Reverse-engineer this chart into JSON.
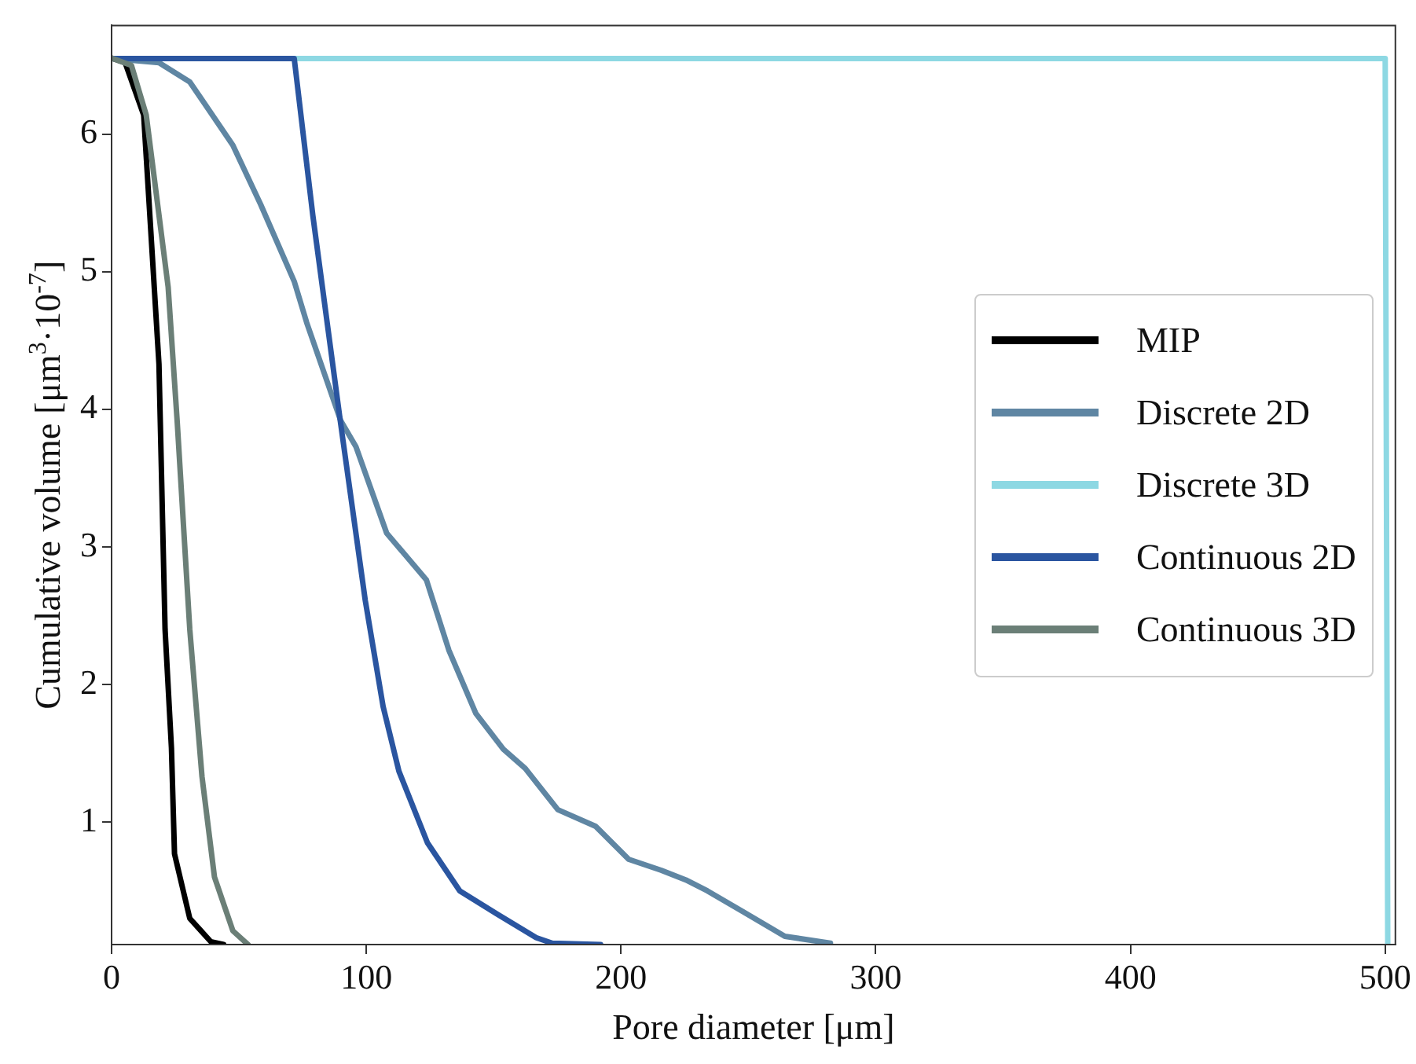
{
  "chart_data": {
    "type": "line",
    "xlabel": "Pore diameter [μm]",
    "ylabel": "Cumulative volume [μm$^{3}$·10$^{-7}$]",
    "xlim": [
      0,
      504
    ],
    "xticks": [
      0,
      100,
      200,
      300,
      400,
      500
    ],
    "ylim": [
      0.11,
      6.79
    ],
    "yticks": [
      1,
      2,
      3,
      4,
      5,
      6
    ],
    "grid": false,
    "legend": "right",
    "marker": "none",
    "line_style": "solid",
    "series": [
      {
        "name": "MIP",
        "color": "#000000",
        "x": [
          0.5,
          5.3,
          12.6,
          18.6,
          21,
          23.5,
          24.7,
          30.7,
          39,
          44
        ],
        "values": [
          6.55,
          6.52,
          6.14,
          4.33,
          2.4,
          1.54,
          0.77,
          0.3,
          0.13,
          0.11
        ]
      },
      {
        "name": "Discrete 2D",
        "color": "#5f86a3",
        "x": [
          0,
          18.6,
          30.7,
          47.6,
          58.5,
          71.7,
          76.6,
          89.9,
          95.9,
          108,
          123.6,
          132.4,
          143,
          153.8,
          162.4,
          175.2,
          190,
          203,
          215.8,
          225.4,
          233.9,
          247.8,
          264.3,
          282.2
        ],
        "values": [
          6.55,
          6.52,
          6.38,
          5.92,
          5.49,
          4.93,
          4.63,
          3.92,
          3.73,
          3.1,
          2.76,
          2.25,
          1.79,
          1.53,
          1.39,
          1.09,
          0.97,
          0.73,
          0.65,
          0.58,
          0.5,
          0.35,
          0.17,
          0.12
        ]
      },
      {
        "name": "Discrete 3D",
        "color": "#8dd8e3",
        "x": [
          0,
          500,
          501
        ],
        "values": [
          6.55,
          6.55,
          0.11
        ]
      },
      {
        "name": "Continuous 2D",
        "color": "#2a55a0",
        "x": [
          0,
          71.7,
          79,
          89.9,
          99.6,
          106.6,
          112.8,
          124,
          136.7,
          151.5,
          166.7,
          173,
          192
        ],
        "values": [
          6.55,
          6.55,
          5.41,
          3.9,
          2.61,
          1.84,
          1.37,
          0.85,
          0.5,
          0.33,
          0.16,
          0.12,
          0.11
        ]
      },
      {
        "name": "Continuous 3D",
        "color": "#6b7f77",
        "x": [
          0.5,
          7.8,
          13.6,
          22.2,
          25.8,
          30.7,
          35.5,
          40.4,
          47.6,
          53.6
        ],
        "values": [
          6.55,
          6.5,
          6.14,
          4.89,
          3.9,
          2.4,
          1.33,
          0.6,
          0.21,
          0.11
        ]
      }
    ]
  }
}
